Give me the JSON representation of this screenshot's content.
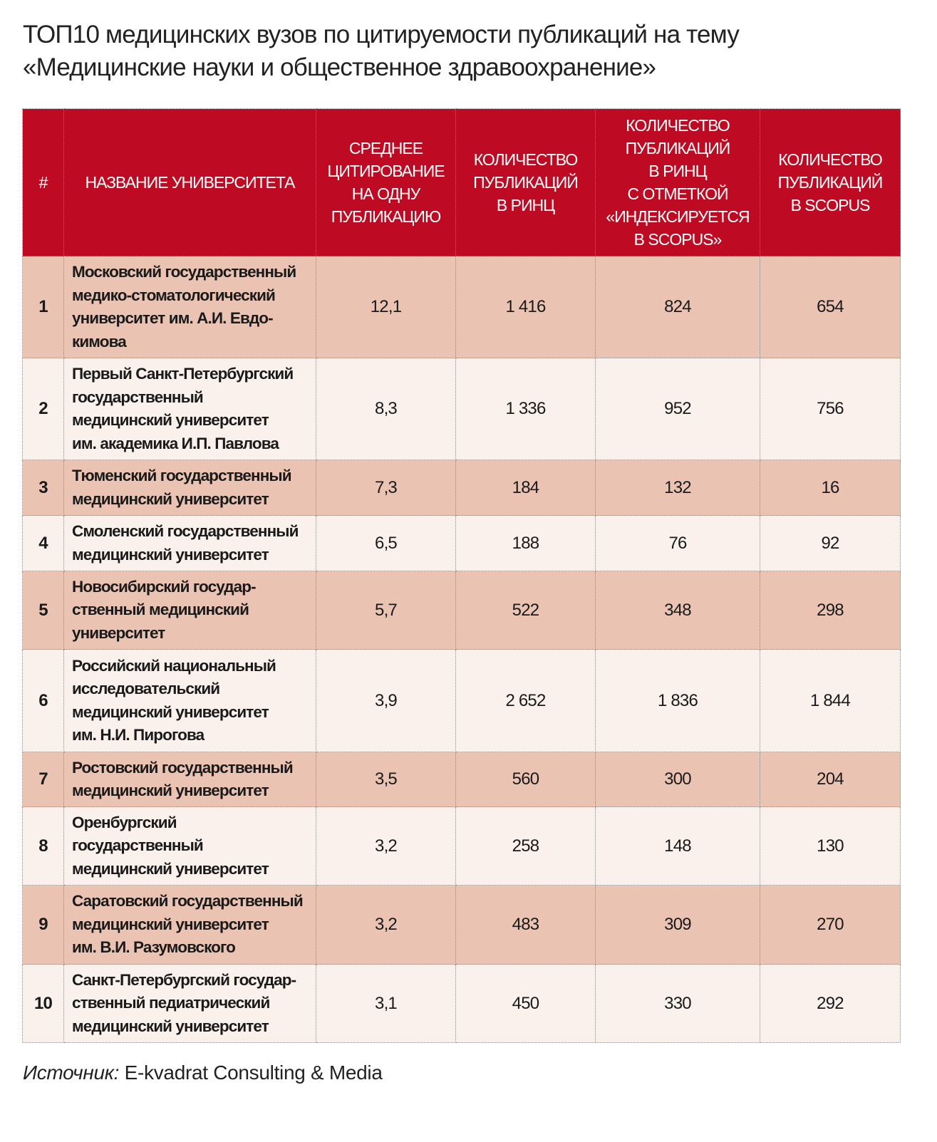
{
  "title": "ТОП10 медицинских вузов по цитируемости публикаций на тему\n«Медицинские науки и общественное здравоохранение»",
  "colors": {
    "header": "#BE0A22",
    "row_odd": "#EBC3B3",
    "row_even": "#FAF0EC"
  },
  "chart_data": {
    "type": "table",
    "columns": [
      "#",
      "НАЗВАНИЕ УНИВЕРСИТЕТА",
      "СРЕДНЕЕ\nЦИТИРОВАНИЕ\nНА ОДНУ\nПУБЛИКАЦИЮ",
      "КОЛИЧЕСТВО\nПУБЛИКАЦИЙ\nВ РИНЦ",
      "КОЛИЧЕСТВО\nПУБЛИКАЦИЙ\nВ РИНЦ\nС ОТМЕТКОЙ\n«ИНДЕКСИРУЕТСЯ\nВ SCOPUS»",
      "КОЛИЧЕСТВО\nПУБЛИКАЦИЙ\nВ SCOPUS"
    ],
    "rows": [
      [
        "1",
        "Московский государственный\nмедико-стоматологический\nуниверситет им. А.И. Евдо-\nкимова",
        "12,1",
        "1 416",
        "824",
        "654"
      ],
      [
        "2",
        "Первый Санкт-Петербургский\nгосударственный\nмедицинский университет\nим. академика И.П. Павлова",
        "8,3",
        "1 336",
        "952",
        "756"
      ],
      [
        "3",
        "Тюменский государственный\nмедицинский университет",
        "7,3",
        "184",
        "132",
        "16"
      ],
      [
        "4",
        "Смоленский государственный\nмедицинский университет",
        "6,5",
        "188",
        "76",
        "92"
      ],
      [
        "5",
        "Новосибирский государ-\nственный медицинский\nуниверситет",
        "5,7",
        "522",
        "348",
        "298"
      ],
      [
        "6",
        "Российский национальный\nисследовательский\nмедицинский университет\nим. Н.И. Пирогова",
        "3,9",
        "2 652",
        "1 836",
        "1 844"
      ],
      [
        "7",
        "Ростовский государственный\nмедицинский университет",
        "3,5",
        "560",
        "300",
        "204"
      ],
      [
        "8",
        "Оренбургский\nгосударственный\nмедицинский университет",
        "3,2",
        "258",
        "148",
        "130"
      ],
      [
        "9",
        "Саратовский государственный\nмедицинский университет\nим. В.И. Разумовского",
        "3,2",
        "483",
        "309",
        "270"
      ],
      [
        "10",
        "Санкт-Петербургский государ-\nственный педиатрический\nмедицинский университет",
        "3,1",
        "450",
        "330",
        "292"
      ]
    ]
  },
  "source": {
    "label": "Источник:",
    "text": " E-kvadrat Consulting & Media"
  }
}
